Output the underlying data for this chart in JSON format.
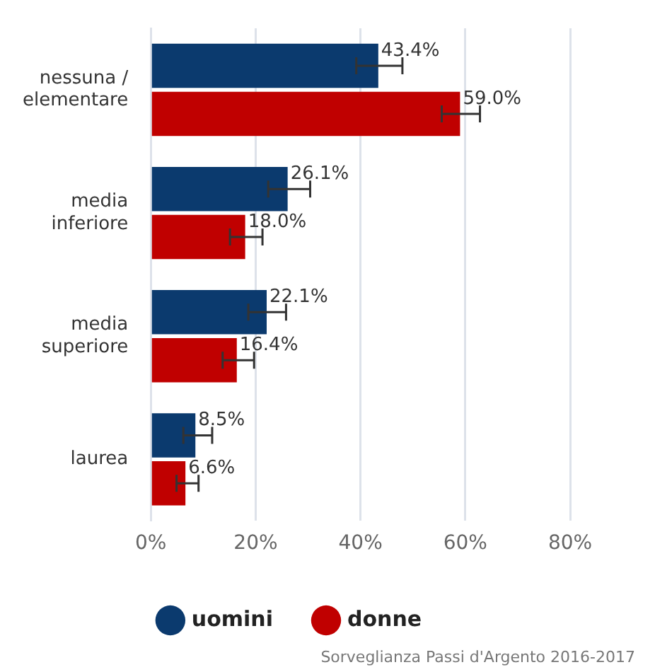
{
  "chart_data": {
    "type": "bar",
    "orientation": "horizontal",
    "categories": [
      "nessuna / elementare",
      "media inferiore",
      "media superiore",
      "laurea"
    ],
    "series": [
      {
        "name": "uomini",
        "color": "#0b3a6e",
        "values": [
          43.4,
          26.1,
          22.1,
          8.5
        ],
        "errors": [
          [
            39.2,
            48.0
          ],
          [
            22.4,
            30.4
          ],
          [
            18.6,
            25.8
          ],
          [
            6.2,
            11.7
          ]
        ],
        "value_labels": [
          "43.4%",
          "26.1%",
          "22.1%",
          "8.5%"
        ]
      },
      {
        "name": "donne",
        "color": "#c00000",
        "values": [
          59.0,
          18.0,
          16.4,
          6.6
        ],
        "errors": [
          [
            55.5,
            62.8
          ],
          [
            15.1,
            21.3
          ],
          [
            13.7,
            19.7
          ],
          [
            4.9,
            9.1
          ]
        ],
        "value_labels": [
          "59.0%",
          "18.0%",
          "16.4%",
          "6.6%"
        ]
      }
    ],
    "xlim": [
      0,
      80
    ],
    "xticks": [
      {
        "value": 0,
        "label": "0%"
      },
      {
        "value": 20,
        "label": "20%"
      },
      {
        "value": 40,
        "label": "40%"
      },
      {
        "value": 60,
        "label": "60%"
      },
      {
        "value": 80,
        "label": "80%"
      }
    ],
    "grid": "x",
    "legend": "bottom",
    "annotations": [
      "Sorveglianza Passi d'Argento 2016-2017"
    ]
  }
}
